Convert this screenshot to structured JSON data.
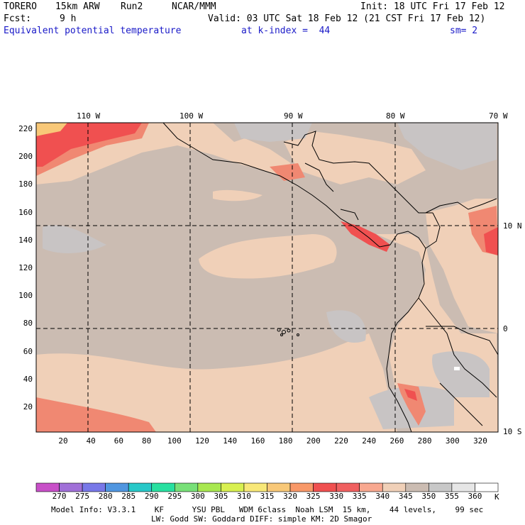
{
  "header": {
    "model": "TORERO",
    "resolution": "15km ARW",
    "run": "Run2",
    "org": "NCAR/MMM",
    "init": "Init: 18 UTC Fri 17 Feb 12",
    "fcst_label": "Fcst:",
    "fcst_value": "9 h",
    "valid": "Valid: 03 UTC Sat 18 Feb 12 (21 CST Fri 17 Feb 12)",
    "field": "Equivalent potential temperature",
    "level": "at k-index =  44",
    "smooth": "sm= 2"
  },
  "map": {
    "top_lon_labels": [
      "110 W",
      "100 W",
      "90 W",
      "80 W",
      "70 W"
    ],
    "right_lat_labels": [
      "10 N",
      "0",
      "10 S"
    ],
    "y_ticks": [
      "220",
      "200",
      "180",
      "160",
      "140",
      "120",
      "100",
      "80",
      "60",
      "40",
      "20"
    ],
    "x_ticks": [
      "20",
      "40",
      "60",
      "80",
      "100",
      "120",
      "140",
      "160",
      "180",
      "200",
      "220",
      "240",
      "260",
      "280",
      "300",
      "320"
    ]
  },
  "colorbar": {
    "levels": [
      "270",
      "275",
      "280",
      "285",
      "290",
      "295",
      "300",
      "305",
      "310",
      "315",
      "320",
      "325",
      "330",
      "335",
      "340",
      "345",
      "350",
      "355",
      "360"
    ],
    "unit": "K",
    "colors": [
      "#c850c8",
      "#a070d8",
      "#7878e8",
      "#5096e0",
      "#28c8c8",
      "#28e0a0",
      "#78e078",
      "#a8e850",
      "#d8f050",
      "#f8e878",
      "#f8c878",
      "#f89868",
      "#f05050",
      "#f06060",
      "#f8a890",
      "#f0d0b8",
      "#cbbcb2",
      "#c8c8c8",
      "#e6e6e6",
      "#ffffff"
    ]
  },
  "footer": {
    "line1": "Model Info: V3.3.1    KF      YSU PBL   WDM 6class  Noah LSM  15 km,    44 levels,    99 sec",
    "line2": "LW: Godd SW: Goddard DIFF: simple KM: 2D Smagor"
  }
}
